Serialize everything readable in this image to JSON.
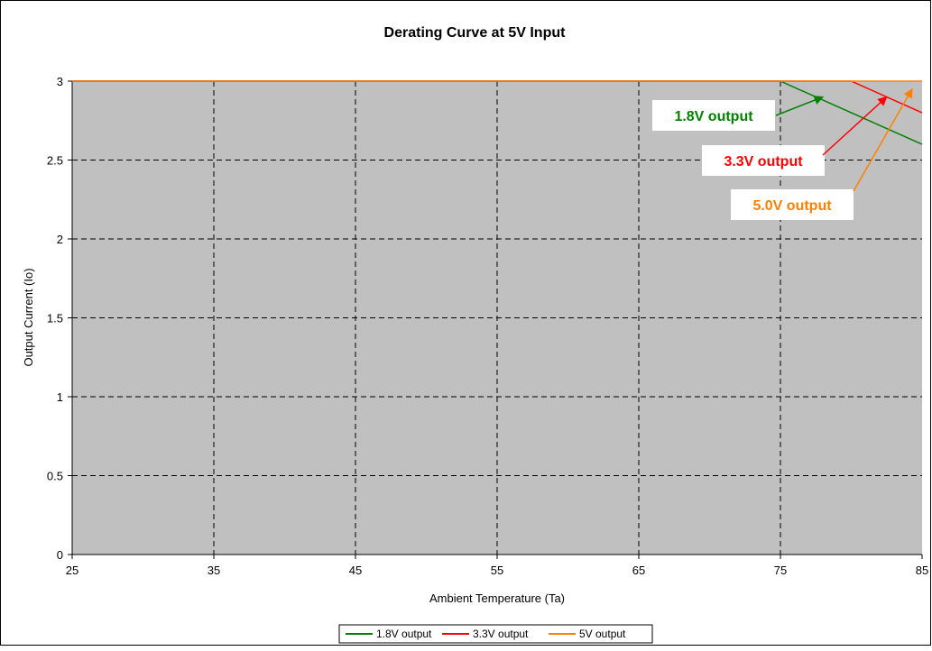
{
  "chart_data": {
    "type": "line",
    "title": "Derating Curve at 5V Input",
    "xlabel": "Ambient Temperature (Ta)",
    "ylabel": "Output Current (Io)",
    "xlim": [
      25,
      85
    ],
    "ylim": [
      0,
      3
    ],
    "x_ticks": [
      "25",
      "35",
      "45",
      "55",
      "65",
      "75",
      "85"
    ],
    "y_ticks": [
      "0",
      "0.5",
      "1",
      "1.5",
      "2",
      "2.5",
      "3"
    ],
    "grid": true,
    "legend_position": "bottom-center",
    "series": [
      {
        "name": "1.8V output",
        "color": "#008000",
        "x": [
          25,
          75,
          85
        ],
        "y": [
          3,
          3,
          2.6
        ]
      },
      {
        "name": "3.3V output",
        "color": "#ff0000",
        "x": [
          25,
          80,
          85
        ],
        "y": [
          3,
          3,
          2.8
        ]
      },
      {
        "name": "5V output",
        "color": "#ff8000",
        "x": [
          25,
          85
        ],
        "y": [
          3,
          3
        ]
      }
    ],
    "annotations": [
      {
        "text": "1.8V output",
        "color": "#008000",
        "target_x": 78,
        "target_y": 2.9
      },
      {
        "text": "3.3V output",
        "color": "#ff0000",
        "target_x": 82.5,
        "target_y": 2.9
      },
      {
        "text": "5.0V output",
        "color": "#ff8000",
        "target_x": 84.3,
        "target_y": 2.95
      }
    ]
  }
}
